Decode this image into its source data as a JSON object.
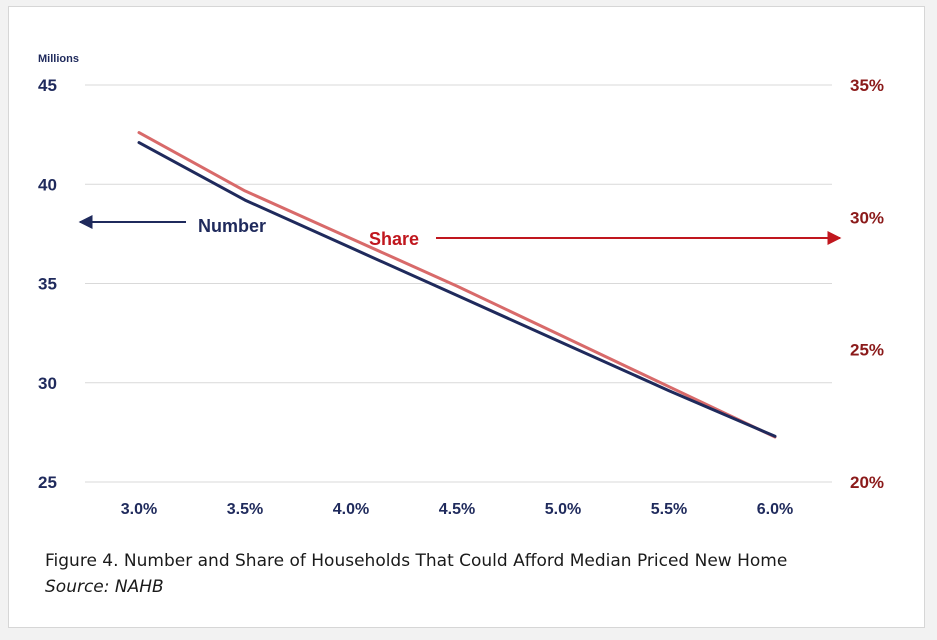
{
  "chart_data": {
    "type": "line",
    "x": [
      "3.0%",
      "3.5%",
      "4.0%",
      "4.5%",
      "5.0%",
      "5.5%",
      "6.0%"
    ],
    "y_left_unit": "Millions",
    "y_left_ticks": [
      "45",
      "40",
      "35",
      "30",
      "25"
    ],
    "y_left_range": [
      25,
      45
    ],
    "y_right_ticks": [
      "35%",
      "30%",
      "25%",
      "20%"
    ],
    "y_right_range": [
      20,
      35
    ],
    "grid": true,
    "series": [
      {
        "name": "Number",
        "axis": "left",
        "color": "#1f2a5c",
        "values": [
          42.1,
          39.2,
          36.8,
          34.4,
          32.0,
          29.6,
          27.3
        ]
      },
      {
        "name": "Share",
        "axis": "right",
        "color": "#d86a6a",
        "values": [
          33.2,
          31.0,
          29.2,
          27.4,
          25.5,
          23.6,
          21.7
        ]
      }
    ],
    "annotations": {
      "number_label": "Number",
      "share_label": "Share",
      "number_arrow_color": "#1f2a5c",
      "share_arrow_color": "#c0171e"
    }
  },
  "caption": {
    "figure_text": "Figure 4. Number and Share of Households That Could Afford Median Priced New Home",
    "source_text": "Source: NAHB"
  },
  "colors": {
    "left_axis_text": "#1f2a5c",
    "right_axis_text": "#8b1a1a",
    "x_axis_text": "#1f2a5c",
    "grid": "#d9d9d9"
  }
}
